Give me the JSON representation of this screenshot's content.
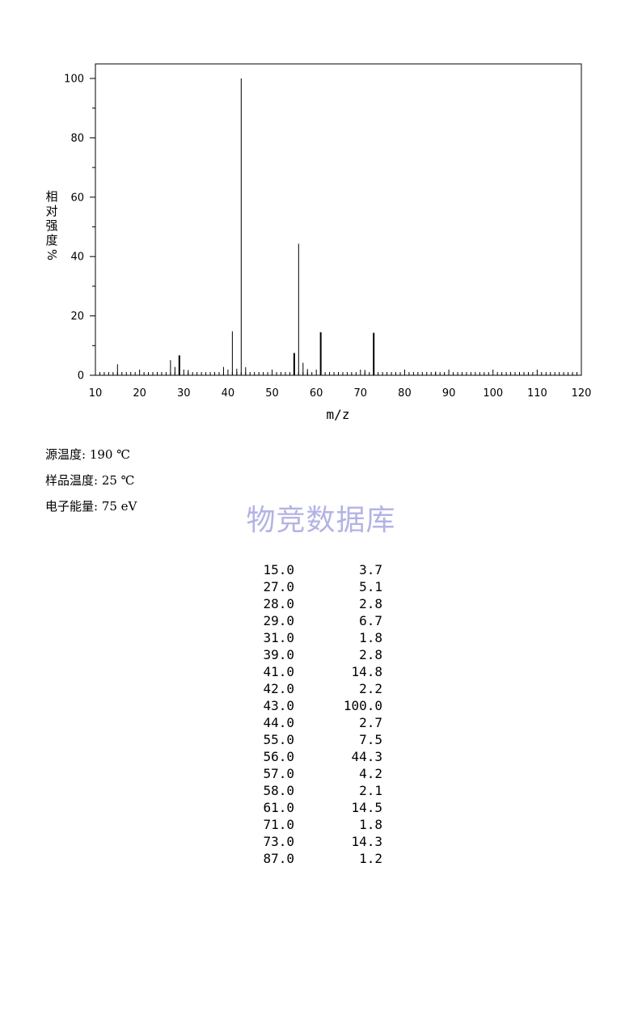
{
  "chart_data": {
    "type": "bar",
    "xlabel": "m/z",
    "ylabel_chars": [
      "相",
      "对",
      "强",
      "度"
    ],
    "ylabel_unit": "%",
    "xlim": [
      10,
      120
    ],
    "ylim": [
      0,
      105
    ],
    "x_ticks": [
      10,
      20,
      30,
      40,
      50,
      60,
      70,
      80,
      90,
      100,
      110,
      120
    ],
    "y_ticks": [
      0,
      20,
      40,
      60,
      80,
      100
    ],
    "x": [
      15,
      27,
      28,
      29,
      31,
      39,
      41,
      42,
      43,
      44,
      55,
      56,
      57,
      58,
      61,
      71,
      73,
      87
    ],
    "values": [
      3.7,
      5.1,
      2.8,
      6.7,
      1.8,
      2.8,
      14.8,
      2.2,
      100.0,
      2.7,
      7.5,
      44.3,
      4.2,
      2.1,
      14.5,
      1.8,
      14.3,
      1.2
    ]
  },
  "conditions": {
    "source_temp": "源温度: 190 ℃",
    "sample_temp": "样品温度: 25 ℃",
    "electron_energy": "电子能量: 75 eV"
  },
  "watermark": "物竞数据库",
  "peak_table": [
    {
      "mz": "15.0",
      "abundance": "3.7"
    },
    {
      "mz": "27.0",
      "abundance": "5.1"
    },
    {
      "mz": "28.0",
      "abundance": "2.8"
    },
    {
      "mz": "29.0",
      "abundance": "6.7"
    },
    {
      "mz": "31.0",
      "abundance": "1.8"
    },
    {
      "mz": "39.0",
      "abundance": "2.8"
    },
    {
      "mz": "41.0",
      "abundance": "14.8"
    },
    {
      "mz": "42.0",
      "abundance": "2.2"
    },
    {
      "mz": "43.0",
      "abundance": "100.0"
    },
    {
      "mz": "44.0",
      "abundance": "2.7"
    },
    {
      "mz": "55.0",
      "abundance": "7.5"
    },
    {
      "mz": "56.0",
      "abundance": "44.3"
    },
    {
      "mz": "57.0",
      "abundance": "4.2"
    },
    {
      "mz": "58.0",
      "abundance": "2.1"
    },
    {
      "mz": "61.0",
      "abundance": "14.5"
    },
    {
      "mz": "71.0",
      "abundance": "1.8"
    },
    {
      "mz": "73.0",
      "abundance": "14.3"
    },
    {
      "mz": "87.0",
      "abundance": "1.2"
    }
  ]
}
